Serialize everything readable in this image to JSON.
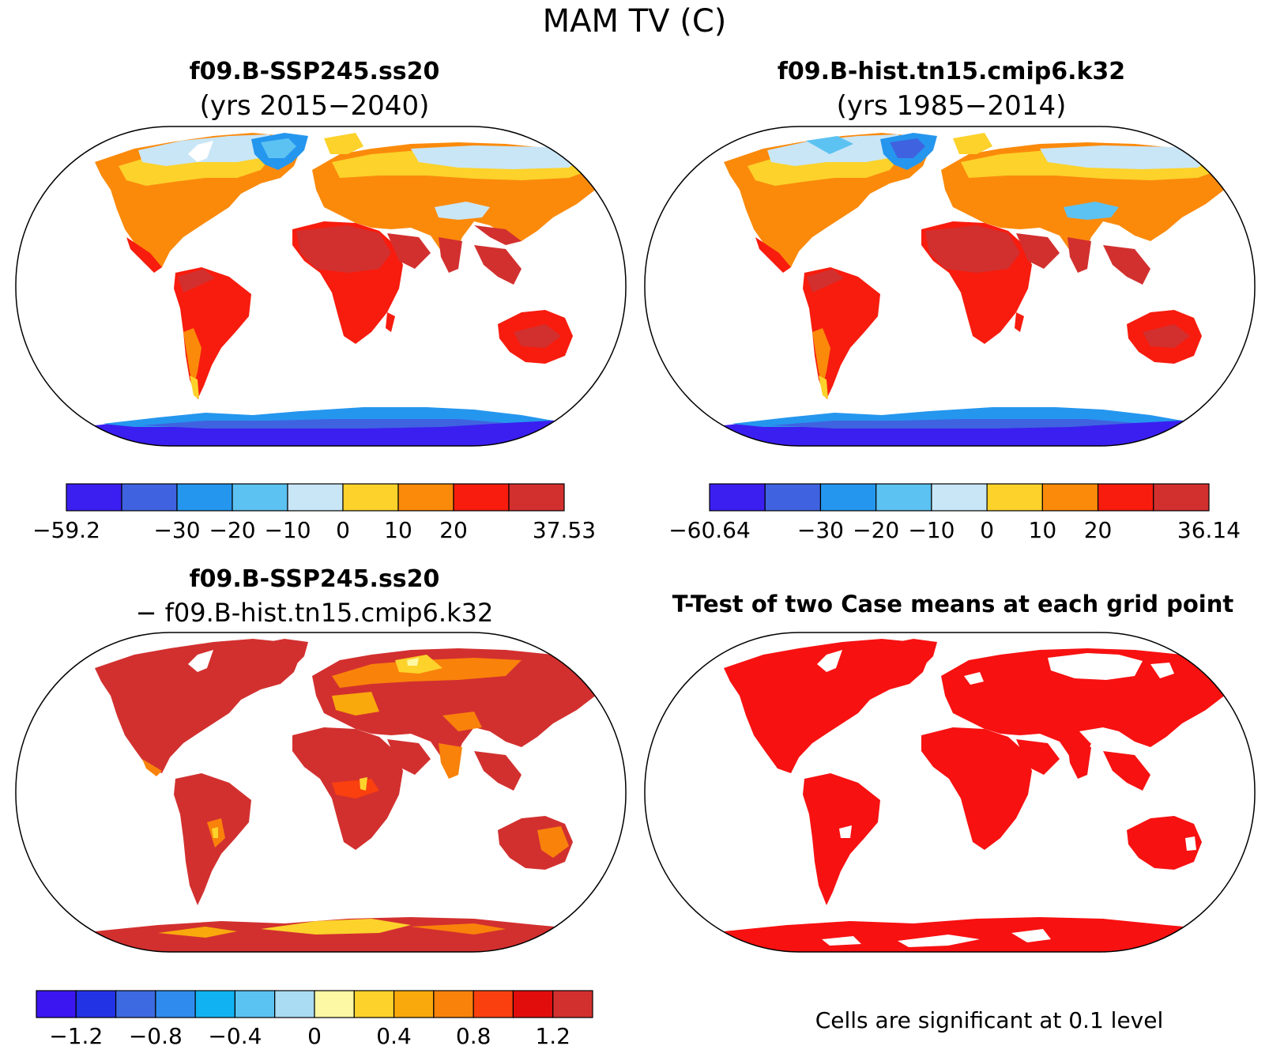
{
  "figure": {
    "title": "MAM TV (C)",
    "footnote": "Cells are significant at 0.1 level"
  },
  "panels": [
    {
      "id": "a",
      "title_line1": "f09.B-SSP245.ss20",
      "title_line2": "(yrs 2015−2040)",
      "colorbar": {
        "colors": [
          "#3b1ff0",
          "#3f63e0",
          "#2596ee",
          "#5cc2f2",
          "#c9e6f7",
          "#fcd22b",
          "#fb8a0b",
          "#f71c0e",
          "#d2302f"
        ],
        "labels": [
          "−59.2",
          "−30",
          "−20",
          "−10",
          "0",
          "10",
          "20",
          "37.53"
        ],
        "label_boundaries": [
          0,
          2,
          3,
          4,
          5,
          6,
          7,
          9
        ],
        "min": -59.2,
        "max": 37.53,
        "levels": [
          -30,
          -20,
          -10,
          0,
          10,
          20
        ]
      }
    },
    {
      "id": "b",
      "title_line1": "f09.B-hist.tn15.cmip6.k32",
      "title_line2": "(yrs 1985−2014)",
      "colorbar": {
        "colors": [
          "#3b1ff0",
          "#3f63e0",
          "#2596ee",
          "#5cc2f2",
          "#c9e6f7",
          "#fcd22b",
          "#fb8a0b",
          "#f71c0e",
          "#d2302f"
        ],
        "labels": [
          "−60.64",
          "−30",
          "−20",
          "−10",
          "0",
          "10",
          "20",
          "36.14"
        ],
        "label_boundaries": [
          0,
          2,
          3,
          4,
          5,
          6,
          7,
          9
        ],
        "min": -60.64,
        "max": 36.14,
        "levels": [
          -30,
          -20,
          -10,
          0,
          10,
          20
        ]
      }
    },
    {
      "id": "c",
      "title_line1": "f09.B-SSP245.ss20",
      "title_line2": "− f09.B-hist.tn15.cmip6.k32",
      "colorbar": {
        "colors": [
          "#3c16f0",
          "#2233e6",
          "#3d6ae0",
          "#2f8bee",
          "#10b2f2",
          "#5bc3f2",
          "#aadcf4",
          "#fdf8a3",
          "#fcd22b",
          "#f9a90c",
          "#f9820b",
          "#f9400e",
          "#e10d0d",
          "#d2302f"
        ],
        "labels": [
          "−1.2",
          "−0.8",
          "−0.4",
          "0",
          "0.4",
          "0.8",
          "1.2"
        ],
        "label_boundaries": [
          1,
          3,
          5,
          7,
          9,
          11,
          13
        ]
      }
    },
    {
      "id": "d",
      "title_line1": "T-Test of two Case means at each grid point",
      "title_line2": ""
    }
  ],
  "legend_colors": {
    "significant": "#f71111",
    "not_significant": "#ffffff"
  }
}
